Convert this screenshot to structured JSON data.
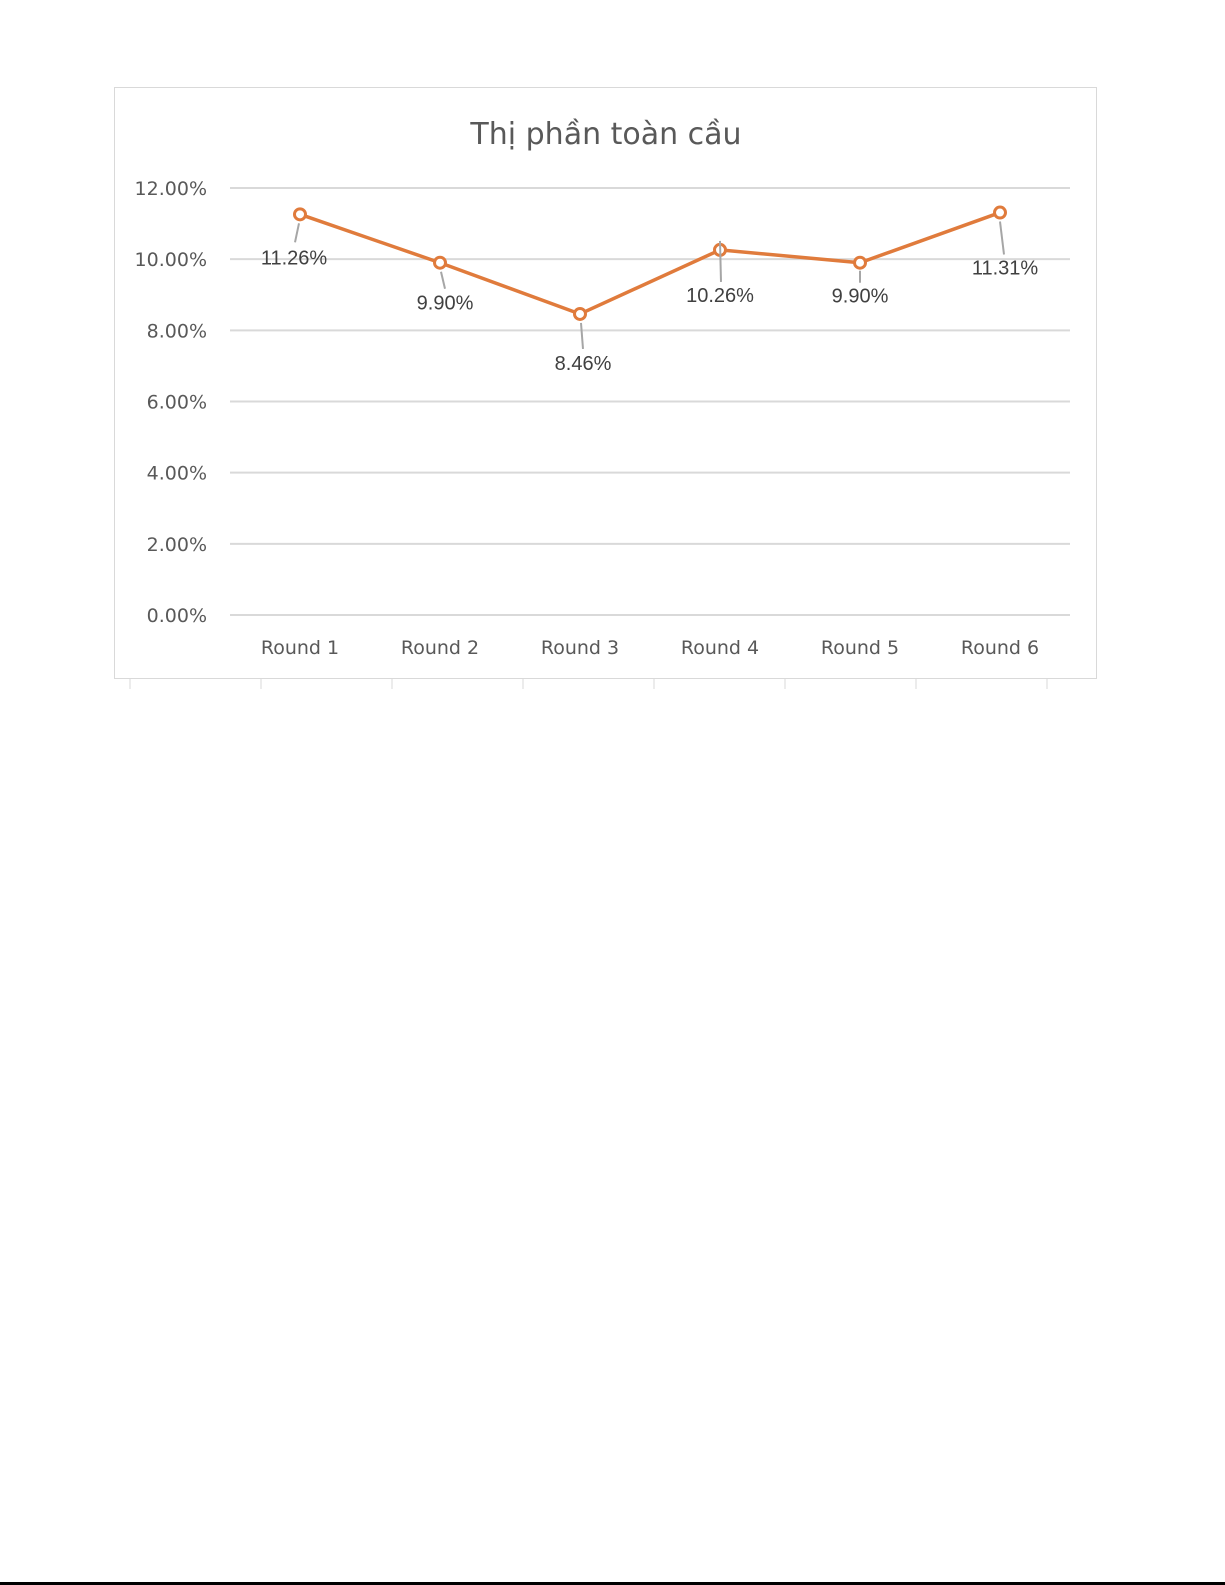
{
  "chart_data": {
    "type": "line",
    "title": "Thị phần toàn cầu",
    "xlabel": "",
    "ylabel": "",
    "categories": [
      "Round 1",
      "Round 2",
      "Round 3",
      "Round 4",
      "Round 5",
      "Round 6"
    ],
    "series": [
      {
        "values": [
          11.26,
          9.9,
          8.46,
          10.26,
          9.9,
          11.31
        ],
        "data_labels": [
          "11.26%",
          "9.90%",
          "8.46%",
          "10.26%",
          "9.90%",
          "11.31%"
        ],
        "color": "#e07b3c"
      }
    ],
    "ylim": [
      0,
      12
    ],
    "yticks": [
      0,
      2,
      4,
      6,
      8,
      10,
      12
    ],
    "ytick_labels": [
      "0.00%",
      "2.00%",
      "4.00%",
      "6.00%",
      "8.00%",
      "10.00%",
      "12.00%"
    ],
    "grid": true,
    "legend": "none"
  }
}
